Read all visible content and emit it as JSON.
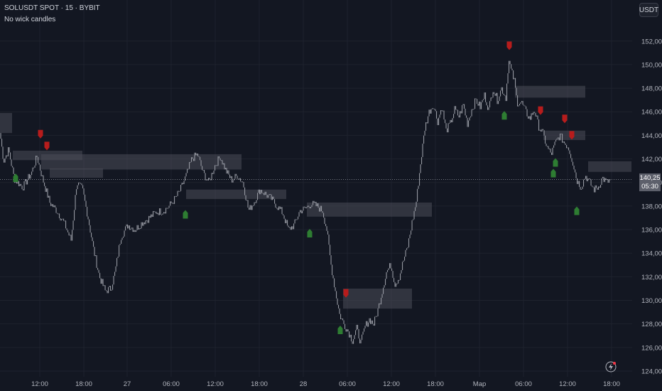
{
  "header": {
    "symbol_line": "SOLUSDT SPOT · 15 · BYBIT",
    "indicator_label": "No wick candles"
  },
  "currency_button": "USDT",
  "price_badge": {
    "price": "140,25",
    "countdown": "05:30"
  },
  "icons": {
    "flash": "lightning-icon",
    "buy_marker": "up-arrow-icon",
    "sell_marker": "down-arrow-icon"
  },
  "colors": {
    "background": "#131722",
    "grid": "#1e222d",
    "candle": "#9598a1",
    "zone": "#4a4d57",
    "buy": "#2e7d32",
    "sell": "#b71c1c",
    "axis_text": "#b2b5be"
  },
  "chart_data": {
    "type": "candlestick",
    "title": "SOLUSDT SPOT · 15 · BYBIT",
    "indicator": "No wick candles",
    "y_unit": "USDT",
    "ylim": [
      123.5,
      153.5
    ],
    "y_ticks": [
      "124,00",
      "126,00",
      "128,00",
      "130,00",
      "132,00",
      "134,00",
      "136,00",
      "138,00",
      "140,00",
      "142,00",
      "144,00",
      "146,00",
      "148,00",
      "150,00",
      "152,00"
    ],
    "x_ticks": [
      "12:00",
      "18:00",
      "27",
      "06:00",
      "12:00",
      "18:00",
      "28",
      "06:00",
      "12:00",
      "18:00",
      "Мар",
      "06:00",
      "12:00",
      "18:00"
    ],
    "last_price": "140,25",
    "close_path": [
      [
        0,
        144.2
      ],
      [
        5,
        141.8
      ],
      [
        12,
        142.8
      ],
      [
        20,
        140.3
      ],
      [
        32,
        139.6
      ],
      [
        44,
        140.8
      ],
      [
        52,
        142.2
      ],
      [
        60,
        140.3
      ],
      [
        70,
        138.3
      ],
      [
        80,
        137.6
      ],
      [
        90,
        136.6
      ],
      [
        100,
        135.1
      ],
      [
        108,
        140.0
      ],
      [
        116,
        139.4
      ],
      [
        124,
        137.0
      ],
      [
        132,
        134.2
      ],
      [
        140,
        132.0
      ],
      [
        148,
        130.8
      ],
      [
        156,
        131.0
      ],
      [
        162,
        132.4
      ],
      [
        170,
        135.4
      ],
      [
        180,
        136.4
      ],
      [
        190,
        136.0
      ],
      [
        200,
        136.6
      ],
      [
        210,
        137.0
      ],
      [
        220,
        137.5
      ],
      [
        230,
        137.6
      ],
      [
        238,
        138.0
      ],
      [
        246,
        138.6
      ],
      [
        254,
        139.4
      ],
      [
        262,
        140.6
      ],
      [
        270,
        142.0
      ],
      [
        278,
        142.4
      ],
      [
        286,
        140.8
      ],
      [
        294,
        140.0
      ],
      [
        302,
        141.4
      ],
      [
        310,
        142.2
      ],
      [
        318,
        141.0
      ],
      [
        326,
        140.2
      ],
      [
        334,
        140.6
      ],
      [
        342,
        140.0
      ],
      [
        350,
        137.6
      ],
      [
        358,
        138.4
      ],
      [
        366,
        139.4
      ],
      [
        374,
        139.0
      ],
      [
        382,
        138.6
      ],
      [
        390,
        138.0
      ],
      [
        398,
        137.4
      ],
      [
        406,
        136.0
      ],
      [
        414,
        136.4
      ],
      [
        422,
        137.6
      ],
      [
        430,
        137.8
      ],
      [
        438,
        138.2
      ],
      [
        446,
        138.0
      ],
      [
        454,
        137.6
      ],
      [
        460,
        136.0
      ],
      [
        466,
        133.0
      ],
      [
        472,
        130.8
      ],
      [
        478,
        128.8
      ],
      [
        484,
        128.0
      ],
      [
        490,
        127.4
      ],
      [
        496,
        126.6
      ],
      [
        502,
        127.6
      ],
      [
        508,
        126.4
      ],
      [
        514,
        127.8
      ],
      [
        520,
        128.4
      ],
      [
        526,
        128.0
      ],
      [
        532,
        129.2
      ],
      [
        538,
        130.8
      ],
      [
        544,
        132.4
      ],
      [
        550,
        133.0
      ],
      [
        556,
        131.4
      ],
      [
        562,
        132.0
      ],
      [
        568,
        133.4
      ],
      [
        574,
        134.6
      ],
      [
        580,
        136.6
      ],
      [
        586,
        138.4
      ],
      [
        592,
        141.6
      ],
      [
        598,
        144.6
      ],
      [
        604,
        146.0
      ],
      [
        610,
        146.6
      ],
      [
        616,
        145.2
      ],
      [
        622,
        146.4
      ],
      [
        628,
        144.4
      ],
      [
        634,
        145.0
      ],
      [
        640,
        146.2
      ],
      [
        646,
        145.6
      ],
      [
        652,
        146.6
      ],
      [
        658,
        145.0
      ],
      [
        664,
        146.2
      ],
      [
        670,
        147.0
      ],
      [
        676,
        146.4
      ],
      [
        682,
        147.4
      ],
      [
        688,
        146.2
      ],
      [
        694,
        148.0
      ],
      [
        700,
        147.0
      ],
      [
        706,
        148.0
      ],
      [
        712,
        147.2
      ],
      [
        716,
        150.4
      ],
      [
        720,
        149.4
      ],
      [
        724,
        148.6
      ],
      [
        728,
        146.8
      ],
      [
        734,
        146.8
      ],
      [
        740,
        146.0
      ],
      [
        746,
        145.4
      ],
      [
        752,
        146.2
      ],
      [
        758,
        144.8
      ],
      [
        764,
        144.2
      ],
      [
        770,
        143.0
      ],
      [
        776,
        142.4
      ],
      [
        782,
        143.4
      ],
      [
        788,
        144.0
      ],
      [
        794,
        143.4
      ],
      [
        800,
        143.0
      ],
      [
        806,
        141.8
      ],
      [
        812,
        140.2
      ],
      [
        818,
        139.6
      ],
      [
        824,
        140.6
      ],
      [
        830,
        140.0
      ],
      [
        836,
        139.4
      ],
      [
        842,
        139.6
      ],
      [
        848,
        140.4
      ],
      [
        854,
        140.0
      ],
      [
        860,
        140.25
      ]
    ],
    "zones": [
      {
        "x1": 0,
        "x2": 17,
        "y1": 144.2,
        "y2": 145.9
      },
      {
        "x1": 18,
        "x2": 116,
        "y1": 141.9,
        "y2": 142.7
      },
      {
        "x1": 70,
        "x2": 145,
        "y1": 140.4,
        "y2": 141.2
      },
      {
        "x1": 58,
        "x2": 340,
        "y1": 141.1,
        "y2": 142.4
      },
      {
        "x1": 262,
        "x2": 403,
        "y1": 138.6,
        "y2": 139.4
      },
      {
        "x1": 432,
        "x2": 608,
        "y1": 137.1,
        "y2": 138.3
      },
      {
        "x1": 483,
        "x2": 580,
        "y1": 129.3,
        "y2": 131.0
      },
      {
        "x1": 725,
        "x2": 824,
        "y1": 147.2,
        "y2": 148.2
      },
      {
        "x1": 765,
        "x2": 824,
        "y1": 143.6,
        "y2": 144.4
      },
      {
        "x1": 828,
        "x2": 889,
        "y1": 140.9,
        "y2": 141.8
      }
    ],
    "buy_signals": [
      [
        22,
        140.4
      ],
      [
        261,
        137.3
      ],
      [
        436,
        135.7
      ],
      [
        479,
        127.5
      ],
      [
        710,
        145.7
      ],
      [
        779,
        140.8
      ],
      [
        782,
        141.7
      ],
      [
        812,
        137.6
      ]
    ],
    "sell_signals": [
      [
        57,
        144.1
      ],
      [
        66,
        143.1
      ],
      [
        487,
        130.6
      ],
      [
        717,
        151.6
      ],
      [
        761,
        146.1
      ],
      [
        795,
        145.4
      ],
      [
        805,
        144.0
      ]
    ]
  }
}
